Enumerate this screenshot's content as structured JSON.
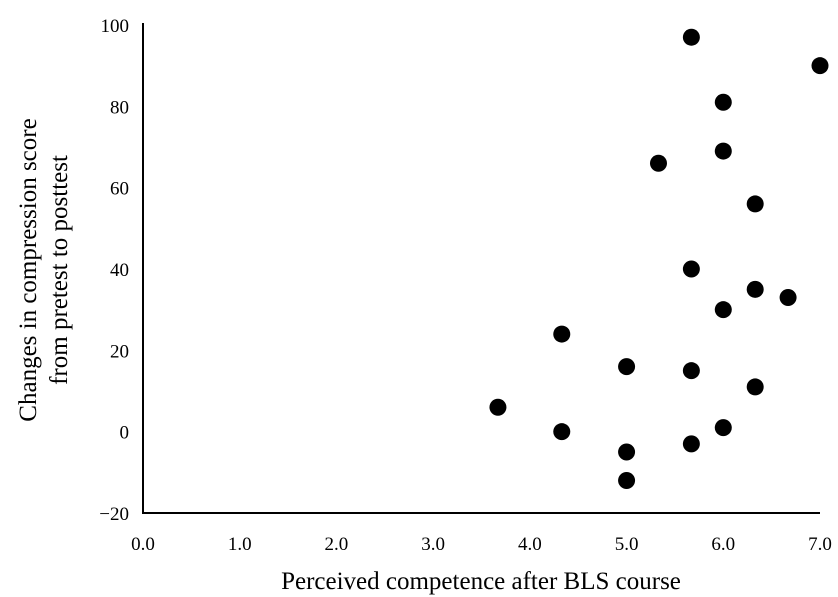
{
  "chart_data": {
    "type": "scatter",
    "title": "",
    "xlabel": "Perceived competence after BLS course",
    "ylabel_lines": [
      "Changes in compression  score",
      "from pretest to posttest"
    ],
    "xlim": [
      0,
      7
    ],
    "ylim": [
      -20,
      100
    ],
    "x_ticks": [
      0,
      1,
      2,
      3,
      4,
      5,
      6,
      7
    ],
    "x_tick_labels": [
      "0.0",
      "1.0",
      "2.0",
      "3.0",
      "4.0",
      "5.0",
      "6.0",
      "7.0"
    ],
    "y_ticks": [
      -20,
      0,
      20,
      40,
      60,
      80,
      100
    ],
    "y_tick_labels": [
      "−20",
      "0",
      "20",
      "40",
      "60",
      "80",
      "100"
    ],
    "grid": false,
    "legend": "none",
    "marker_color": "#000000",
    "points": [
      {
        "x": 3.67,
        "y": 6
      },
      {
        "x": 4.33,
        "y": 24
      },
      {
        "x": 4.33,
        "y": 0
      },
      {
        "x": 5.0,
        "y": 16
      },
      {
        "x": 5.0,
        "y": -5
      },
      {
        "x": 5.0,
        "y": -12
      },
      {
        "x": 5.33,
        "y": 66
      },
      {
        "x": 5.67,
        "y": 97
      },
      {
        "x": 5.67,
        "y": 40
      },
      {
        "x": 5.67,
        "y": 15
      },
      {
        "x": 5.67,
        "y": -3
      },
      {
        "x": 6.0,
        "y": 81
      },
      {
        "x": 6.0,
        "y": 69
      },
      {
        "x": 6.0,
        "y": 30
      },
      {
        "x": 6.0,
        "y": 1
      },
      {
        "x": 6.33,
        "y": 56
      },
      {
        "x": 6.33,
        "y": 35
      },
      {
        "x": 6.33,
        "y": 11
      },
      {
        "x": 6.67,
        "y": 33
      },
      {
        "x": 7.0,
        "y": 90
      }
    ]
  }
}
